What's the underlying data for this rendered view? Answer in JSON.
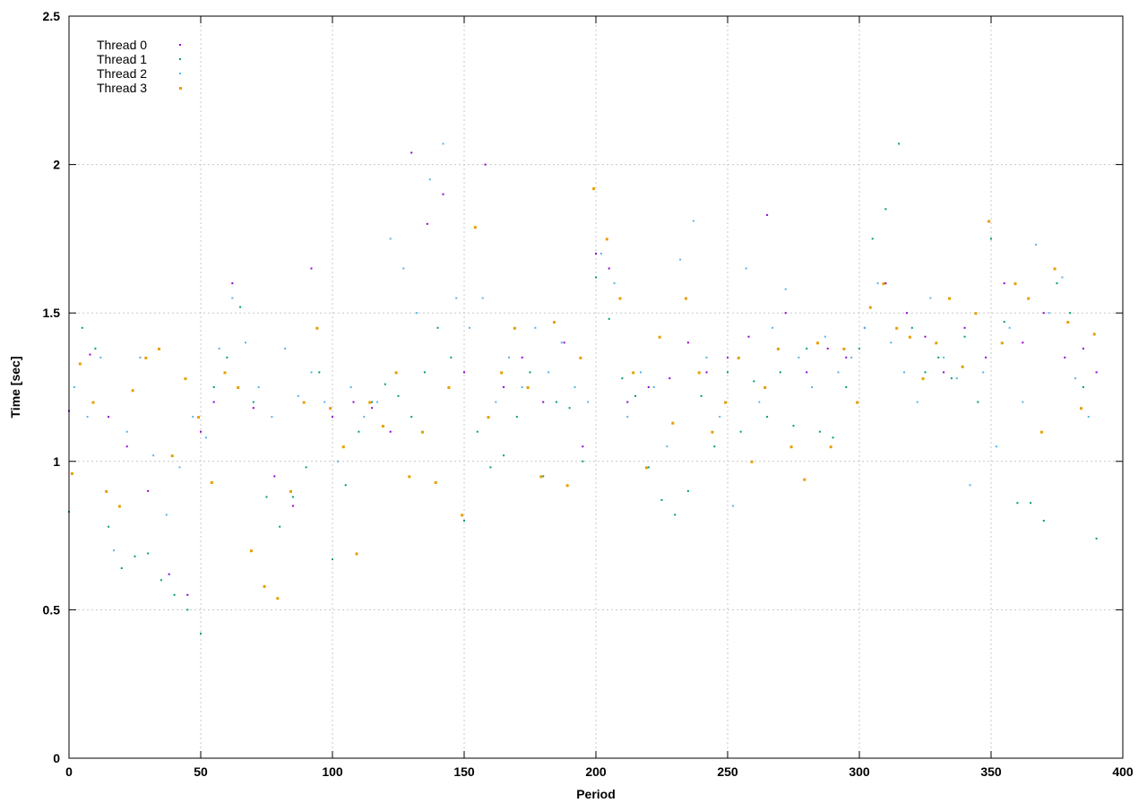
{
  "chart_data": {
    "type": "scatter",
    "title": "",
    "xlabel": "Period",
    "ylabel": "Time [sec]",
    "xlim": [
      0,
      400
    ],
    "ylim": [
      0,
      2.5
    ],
    "xticks": [
      0,
      50,
      100,
      150,
      200,
      250,
      300,
      350,
      400
    ],
    "yticks": [
      0,
      0.5,
      1,
      1.5,
      2,
      2.5
    ],
    "ytick_labels": [
      "0",
      "0.5",
      "1",
      "1.5",
      "2",
      "2.5"
    ],
    "grid": true,
    "legend": "top-left",
    "series": [
      {
        "name": "Thread 0",
        "color": "#9400d3",
        "x": [
          0,
          8,
          15,
          22,
          30,
          38,
          45,
          50,
          55,
          62,
          70,
          78,
          85,
          92,
          100,
          108,
          115,
          122,
          130,
          136,
          142,
          150,
          158,
          165,
          172,
          180,
          188,
          195,
          200,
          205,
          212,
          220,
          228,
          235,
          242,
          250,
          258,
          265,
          272,
          280,
          288,
          295,
          302,
          310,
          318,
          325,
          332,
          340,
          348,
          355,
          362,
          370,
          378,
          385,
          390
        ],
        "y": [
          1.17,
          1.36,
          1.15,
          1.05,
          0.9,
          0.62,
          0.55,
          1.1,
          1.2,
          1.6,
          1.18,
          0.95,
          0.85,
          1.65,
          1.15,
          1.2,
          1.18,
          1.1,
          2.04,
          1.8,
          1.9,
          1.3,
          2.0,
          1.25,
          1.35,
          1.2,
          1.4,
          1.05,
          1.7,
          1.65,
          1.2,
          1.25,
          1.28,
          1.4,
          1.3,
          1.35,
          1.42,
          1.83,
          1.5,
          1.3,
          1.38,
          1.35,
          1.45,
          1.6,
          1.5,
          1.42,
          1.3,
          1.45,
          1.35,
          1.6,
          1.4,
          1.5,
          1.35,
          1.38,
          1.3
        ]
      },
      {
        "name": "Thread 1",
        "color": "#009e73",
        "x": [
          0,
          5,
          10,
          15,
          20,
          25,
          30,
          35,
          40,
          45,
          50,
          55,
          60,
          65,
          70,
          75,
          80,
          85,
          90,
          95,
          100,
          105,
          110,
          115,
          120,
          125,
          130,
          135,
          140,
          145,
          150,
          155,
          160,
          165,
          170,
          175,
          180,
          185,
          190,
          195,
          200,
          205,
          210,
          215,
          220,
          225,
          230,
          235,
          240,
          245,
          250,
          255,
          260,
          265,
          270,
          275,
          280,
          285,
          290,
          295,
          300,
          305,
          310,
          315,
          320,
          325,
          330,
          335,
          340,
          345,
          350,
          355,
          360,
          365,
          370,
          375,
          380,
          385,
          390
        ],
        "y": [
          0.83,
          1.45,
          1.38,
          0.78,
          0.64,
          0.68,
          0.69,
          0.6,
          0.55,
          0.5,
          0.42,
          1.25,
          1.35,
          1.52,
          1.2,
          0.88,
          0.78,
          0.88,
          0.98,
          1.3,
          0.67,
          0.92,
          1.1,
          1.2,
          1.26,
          1.22,
          1.15,
          1.3,
          1.45,
          1.35,
          0.8,
          1.1,
          0.98,
          1.02,
          1.15,
          1.3,
          0.95,
          1.2,
          1.18,
          1.0,
          1.62,
          1.48,
          1.28,
          1.22,
          0.98,
          0.87,
          0.82,
          0.9,
          1.22,
          1.05,
          1.3,
          1.1,
          1.27,
          1.15,
          1.3,
          1.12,
          1.38,
          1.1,
          1.08,
          1.25,
          1.38,
          1.75,
          1.85,
          2.07,
          1.45,
          1.3,
          1.35,
          1.28,
          1.42,
          1.2,
          1.75,
          1.47,
          0.86,
          0.86,
          0.8,
          1.6,
          1.5,
          1.25,
          0.74
        ]
      },
      {
        "name": "Thread 2",
        "color": "#56b4e9",
        "x": [
          2,
          7,
          12,
          17,
          22,
          27,
          32,
          37,
          42,
          47,
          52,
          57,
          62,
          67,
          72,
          77,
          82,
          87,
          92,
          97,
          102,
          107,
          112,
          117,
          122,
          127,
          132,
          137,
          142,
          147,
          152,
          157,
          162,
          167,
          172,
          177,
          182,
          187,
          192,
          197,
          202,
          207,
          212,
          217,
          222,
          227,
          232,
          237,
          242,
          247,
          252,
          257,
          262,
          267,
          272,
          277,
          282,
          287,
          292,
          297,
          302,
          307,
          312,
          317,
          322,
          327,
          332,
          337,
          342,
          347,
          352,
          357,
          362,
          367,
          372,
          377,
          382,
          387
        ],
        "y": [
          1.25,
          1.15,
          1.35,
          0.7,
          1.1,
          1.35,
          1.02,
          0.82,
          0.98,
          1.15,
          1.08,
          1.38,
          1.55,
          1.4,
          1.25,
          1.15,
          1.38,
          1.22,
          1.3,
          1.2,
          1.0,
          1.25,
          1.15,
          1.2,
          1.75,
          1.65,
          1.5,
          1.95,
          2.07,
          1.55,
          1.45,
          1.55,
          1.2,
          1.35,
          1.25,
          1.45,
          1.3,
          1.4,
          1.25,
          1.2,
          1.7,
          1.6,
          1.15,
          1.3,
          1.25,
          1.05,
          1.68,
          1.81,
          1.35,
          1.15,
          0.85,
          1.65,
          1.2,
          1.45,
          1.58,
          1.35,
          1.25,
          1.42,
          1.3,
          1.35,
          1.45,
          1.6,
          1.4,
          1.3,
          1.2,
          1.55,
          1.35,
          1.28,
          0.92,
          1.3,
          1.05,
          1.45,
          1.2,
          1.73,
          1.5,
          1.62,
          1.28,
          1.15
        ]
      },
      {
        "name": "Thread 3",
        "color": "#e69f00",
        "x": [
          1,
          4,
          9,
          14,
          19,
          24,
          29,
          34,
          39,
          44,
          49,
          54,
          59,
          64,
          69,
          74,
          79,
          84,
          89,
          94,
          99,
          104,
          109,
          114,
          119,
          124,
          129,
          134,
          139,
          144,
          149,
          154,
          159,
          164,
          169,
          174,
          179,
          184,
          189,
          194,
          199,
          204,
          209,
          214,
          219,
          224,
          229,
          234,
          239,
          244,
          249,
          254,
          259,
          264,
          269,
          274,
          279,
          284,
          289,
          294,
          299,
          304,
          309,
          314,
          319,
          324,
          329,
          334,
          339,
          344,
          349,
          354,
          359,
          364,
          369,
          374,
          379,
          384,
          389
        ],
        "y": [
          0.96,
          1.33,
          1.2,
          0.9,
          0.85,
          1.24,
          1.35,
          1.38,
          1.02,
          1.28,
          1.15,
          0.93,
          1.3,
          1.25,
          0.7,
          0.58,
          0.54,
          0.9,
          1.2,
          1.45,
          1.18,
          1.05,
          0.69,
          1.2,
          1.12,
          1.3,
          0.95,
          1.1,
          0.93,
          1.25,
          0.82,
          1.79,
          1.15,
          1.3,
          1.45,
          1.25,
          0.95,
          1.47,
          0.92,
          1.35,
          1.92,
          1.75,
          1.55,
          1.3,
          0.98,
          1.42,
          1.13,
          1.55,
          1.3,
          1.1,
          1.2,
          1.35,
          1.0,
          1.25,
          1.38,
          1.05,
          0.94,
          1.4,
          1.05,
          1.38,
          1.2,
          1.52,
          1.6,
          1.45,
          1.42,
          1.28,
          1.4,
          1.55,
          1.32,
          1.5,
          1.81,
          1.4,
          1.6,
          1.55,
          1.1,
          1.65,
          1.47,
          1.18,
          1.43
        ]
      }
    ]
  }
}
